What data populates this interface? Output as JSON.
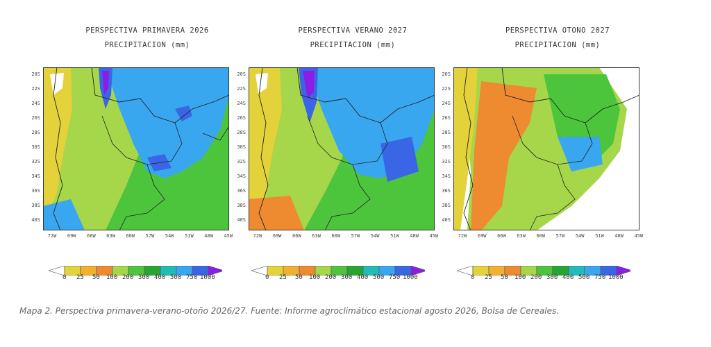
{
  "panels": [
    {
      "title": "PERSPECTIVA PRIMAVERA 2026",
      "subtitle": "PRECIPITACION (mm)"
    },
    {
      "title": "PERSPECTIVA VERANO 2027",
      "subtitle": "PRECIPITACION (mm)"
    },
    {
      "title": "PERSPECTIVA OTONO 2027",
      "subtitle": "PRECIPITACION (mm)"
    }
  ],
  "lat_labels": [
    "20S",
    "22S",
    "24S",
    "26S",
    "28S",
    "30S",
    "32S",
    "34S",
    "36S",
    "38S",
    "40S"
  ],
  "lon_labels": [
    "72W",
    "69W",
    "66W",
    "63W",
    "60W",
    "57W",
    "54W",
    "51W",
    "48W",
    "45W"
  ],
  "legend": {
    "ticks": [
      "0",
      "25",
      "50",
      "100",
      "200",
      "300",
      "400",
      "500",
      "750",
      "1000"
    ],
    "colors": [
      "#ffffff",
      "#e3d23a",
      "#f0b030",
      "#ee8a30",
      "#a6d64a",
      "#4cc43c",
      "#26a631",
      "#1fbcb8",
      "#39a6f0",
      "#3a66e6",
      "#8a1ee6"
    ]
  },
  "caption": "Mapa 2. Perspectiva primavera-verano-otoño 2026/27.  Fuente: Informe agroclimático estacional agosto 2026, Bolsa de Cereales."
}
